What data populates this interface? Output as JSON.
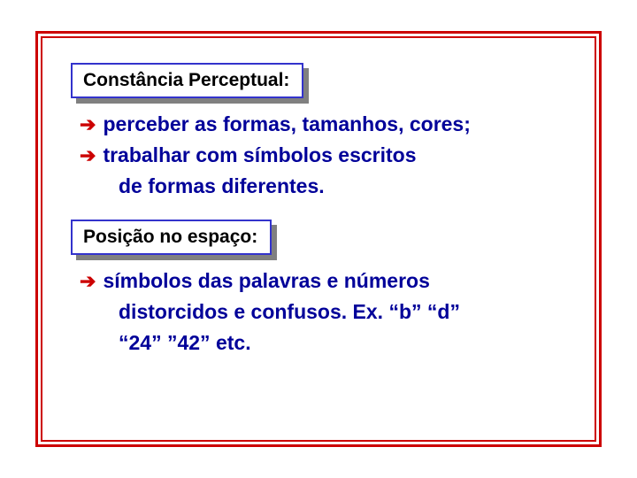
{
  "frame": {
    "outer_border_color": "#cc0000",
    "inner_border_color": "#cc0000",
    "background": "#ffffff"
  },
  "title_box": {
    "border_color": "#3333cc",
    "shadow_color": "#808080",
    "text_color": "#000000",
    "background": "#ffffff",
    "fontsize": 21
  },
  "bullet_style": {
    "arrow_color": "#cc0000",
    "text_color": "#000099",
    "fontsize": 23,
    "arrow_glyph": "➔"
  },
  "sections": [
    {
      "title": "Constância Perceptual:",
      "items": [
        {
          "lines": [
            "perceber as formas, tamanhos, cores;"
          ]
        },
        {
          "lines": [
            "trabalhar com símbolos escritos",
            "de formas diferentes."
          ]
        }
      ]
    },
    {
      "title": "Posição no espaço:",
      "items": [
        {
          "lines": [
            "símbolos das palavras e números",
            "distorcidos e confusos. Ex. “b” “d”",
            "“24” ”42” etc."
          ]
        }
      ]
    }
  ]
}
